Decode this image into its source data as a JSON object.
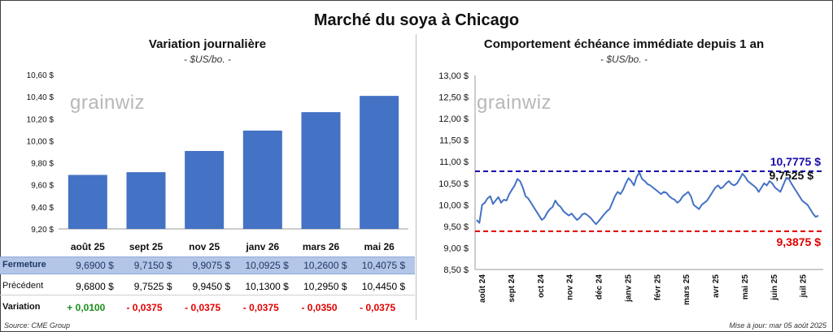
{
  "title": "Marché du soya à Chicago",
  "left_chart": {
    "title": "Variation journalière",
    "unit": "- $US/bo. -",
    "watermark": "grainwiz"
  },
  "right_chart": {
    "title": "Comportement échéance immédiate depuis 1 an",
    "unit": "- $US/bo. -",
    "watermark": "grainwiz",
    "labels": {
      "high": "10,7775 $",
      "current": "9,7525 $",
      "low": "9,3875 $"
    }
  },
  "table": {
    "rows": [
      {
        "label": "Fermeture",
        "cells": [
          "9,6900 $",
          "9,7150 $",
          "9,9075 $",
          "10,0925 $",
          "10,2600 $",
          "10,4075 $"
        ]
      },
      {
        "label": "Précédent",
        "cells": [
          "9,6800 $",
          "9,7525 $",
          "9,9450 $",
          "10,1300 $",
          "10,2950 $",
          "10,4450 $"
        ]
      },
      {
        "label": "Variation",
        "cells": [
          "+ 0,0100",
          "- 0,0375",
          "- 0,0375",
          "- 0,0375",
          "- 0,0350",
          "- 0,0375"
        ]
      }
    ]
  },
  "footer": {
    "source": "Source: CME Group",
    "updated": "Mise à jour: mar 05 août 2025"
  },
  "colors": {
    "bar": "#4472c4",
    "line": "#4472c4",
    "high_line": "#1a0dab",
    "low_line": "#e00000",
    "positive": "#1a8f1a",
    "negative": "#e00000",
    "table_highlight": "#b4c6e7"
  },
  "chart_data": [
    {
      "type": "bar",
      "categories": [
        "août 25",
        "sept 25",
        "nov 25",
        "janv 26",
        "mars 26",
        "mai 26"
      ],
      "values": [
        9.69,
        9.715,
        9.9075,
        10.0925,
        10.26,
        10.4075
      ],
      "title": "Variation journalière",
      "ylim": [
        9.2,
        10.6
      ],
      "yticks": [
        9.2,
        9.4,
        9.6,
        9.8,
        10.0,
        10.2,
        10.4,
        10.6
      ],
      "ytick_labels": [
        "9,20 $",
        "9,40 $",
        "9,60 $",
        "9,80 $",
        "10,00 $",
        "10,20 $",
        "10,40 $",
        "10,60 $"
      ],
      "grid": false
    },
    {
      "type": "line",
      "title": "Comportement échéance immédiate depuis 1 an",
      "x_labels": [
        "août 24",
        "sept 24",
        "oct 24",
        "nov 24",
        "déc 24",
        "janv 25",
        "févr 25",
        "mars 25",
        "avr 25",
        "mai 25",
        "juin 25",
        "juil 25"
      ],
      "ylim": [
        8.5,
        13.0
      ],
      "yticks": [
        8.5,
        9.0,
        9.5,
        10.0,
        10.5,
        11.0,
        11.5,
        12.0,
        12.5,
        13.0
      ],
      "ytick_labels": [
        "8,50 $",
        "9,00 $",
        "9,50 $",
        "10,00 $",
        "10,50 $",
        "11,00 $",
        "11,50 $",
        "12,00 $",
        "12,50 $",
        "13,00 $"
      ],
      "series": [
        {
          "values": [
            9.65,
            9.58,
            10.0,
            10.05,
            10.15,
            10.2,
            10.02,
            10.1,
            10.18,
            10.05,
            10.12,
            10.1,
            10.25,
            10.35,
            10.45,
            10.6,
            10.55,
            10.4,
            10.2,
            10.15,
            10.05,
            9.95,
            9.85,
            9.75,
            9.65,
            9.7,
            9.82,
            9.9,
            9.95,
            10.1,
            10.0,
            9.95,
            9.85,
            9.8,
            9.75,
            9.8,
            9.72,
            9.65,
            9.7,
            9.78,
            9.8,
            9.75,
            9.7,
            9.62,
            9.55,
            9.62,
            9.7,
            9.78,
            9.85,
            9.9,
            10.05,
            10.2,
            10.3,
            10.25,
            10.35,
            10.5,
            10.62,
            10.55,
            10.45,
            10.65,
            10.75,
            10.6,
            10.55,
            10.48,
            10.45,
            10.4,
            10.35,
            10.3,
            10.25,
            10.3,
            10.28,
            10.2,
            10.15,
            10.12,
            10.05,
            10.1,
            10.2,
            10.25,
            10.3,
            10.2,
            10.0,
            9.95,
            9.9,
            10.0,
            10.05,
            10.1,
            10.2,
            10.3,
            10.4,
            10.45,
            10.38,
            10.42,
            10.5,
            10.55,
            10.48,
            10.45,
            10.5,
            10.6,
            10.72,
            10.65,
            10.55,
            10.5,
            10.45,
            10.4,
            10.3,
            10.4,
            10.5,
            10.45,
            10.55,
            10.5,
            10.4,
            10.35,
            10.3,
            10.45,
            10.6,
            10.62,
            10.5,
            10.4,
            10.3,
            10.2,
            10.1,
            10.05,
            10.0,
            9.9,
            9.8,
            9.72,
            9.75
          ]
        }
      ],
      "reference_lines": [
        {
          "value": 10.7775,
          "label": "10,7775 $",
          "color": "#1a0dab"
        },
        {
          "value": 9.3875,
          "label": "9,3875 $",
          "color": "#e00000"
        }
      ],
      "current_value": 9.7525,
      "grid": false
    }
  ]
}
